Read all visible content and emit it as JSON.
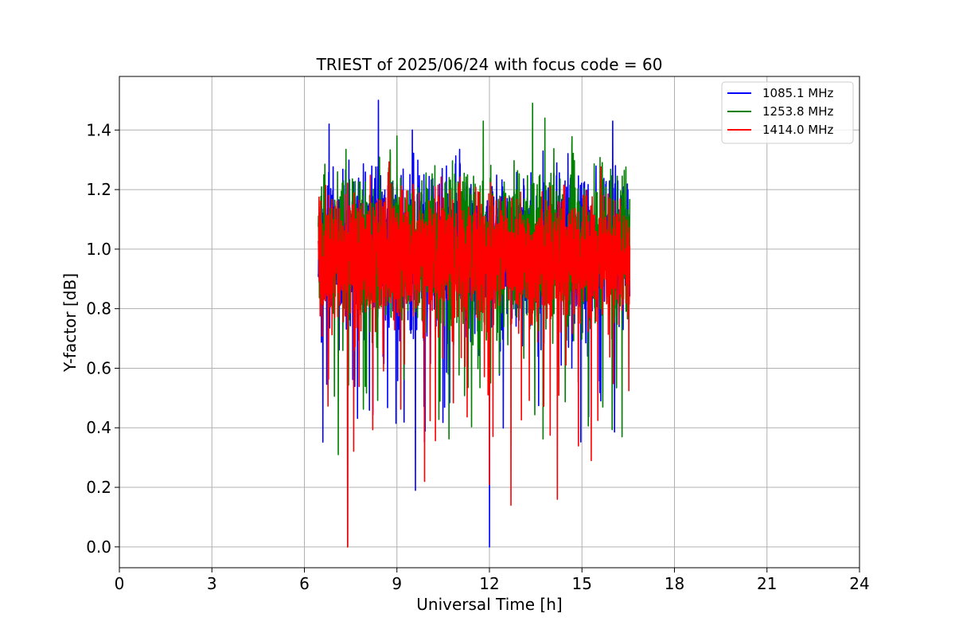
{
  "chart_data": {
    "type": "line",
    "title": "TRIEST of 2025/06/24 with focus code = 60",
    "xlabel": "Universal Time [h]",
    "ylabel": "Y-factor [dB]",
    "xlim": [
      0,
      24
    ],
    "ylim": [
      -0.07,
      1.58
    ],
    "xticks": [
      0,
      3,
      6,
      9,
      12,
      15,
      18,
      21,
      24
    ],
    "yticks": [
      0.0,
      0.2,
      0.4,
      0.6,
      0.8,
      1.0,
      1.2,
      1.4
    ],
    "xtick_labels": [
      "0",
      "3",
      "6",
      "9",
      "12",
      "15",
      "18",
      "21",
      "24"
    ],
    "ytick_labels": [
      "0.0",
      "0.2",
      "0.4",
      "0.6",
      "0.8",
      "1.0",
      "1.2",
      "1.4"
    ],
    "grid": true,
    "legend_position": "top-right",
    "time_range": [
      6.45,
      16.55
    ],
    "series": [
      {
        "name": "1085.1 MHz",
        "color": "#0000ff",
        "mean": 1.0,
        "min": 0.0,
        "max": 1.5,
        "notable_points": [
          [
            8.4,
            1.5
          ],
          [
            6.8,
            1.42
          ],
          [
            9.5,
            1.4
          ],
          [
            16.0,
            1.43
          ],
          [
            9.6,
            0.19
          ],
          [
            12.0,
            0.0
          ],
          [
            7.4,
            0.0
          ]
        ]
      },
      {
        "name": "1253.8 MHz",
        "color": "#008000",
        "mean": 1.0,
        "min": 0.0,
        "max": 1.49,
        "notable_points": [
          [
            13.4,
            1.49
          ],
          [
            13.8,
            1.44
          ],
          [
            11.8,
            1.43
          ],
          [
            9.0,
            1.38
          ],
          [
            7.1,
            0.31
          ],
          [
            16.3,
            0.37
          ],
          [
            7.4,
            0.0
          ]
        ]
      },
      {
        "name": "1414.0 MHz",
        "color": "#ff0000",
        "mean": 0.97,
        "min": 0.0,
        "max": 1.33,
        "notable_points": [
          [
            7.4,
            0.0
          ],
          [
            9.9,
            0.22
          ],
          [
            12.0,
            0.21
          ],
          [
            12.7,
            0.14
          ],
          [
            14.2,
            0.16
          ],
          [
            15.3,
            0.29
          ]
        ]
      }
    ]
  }
}
